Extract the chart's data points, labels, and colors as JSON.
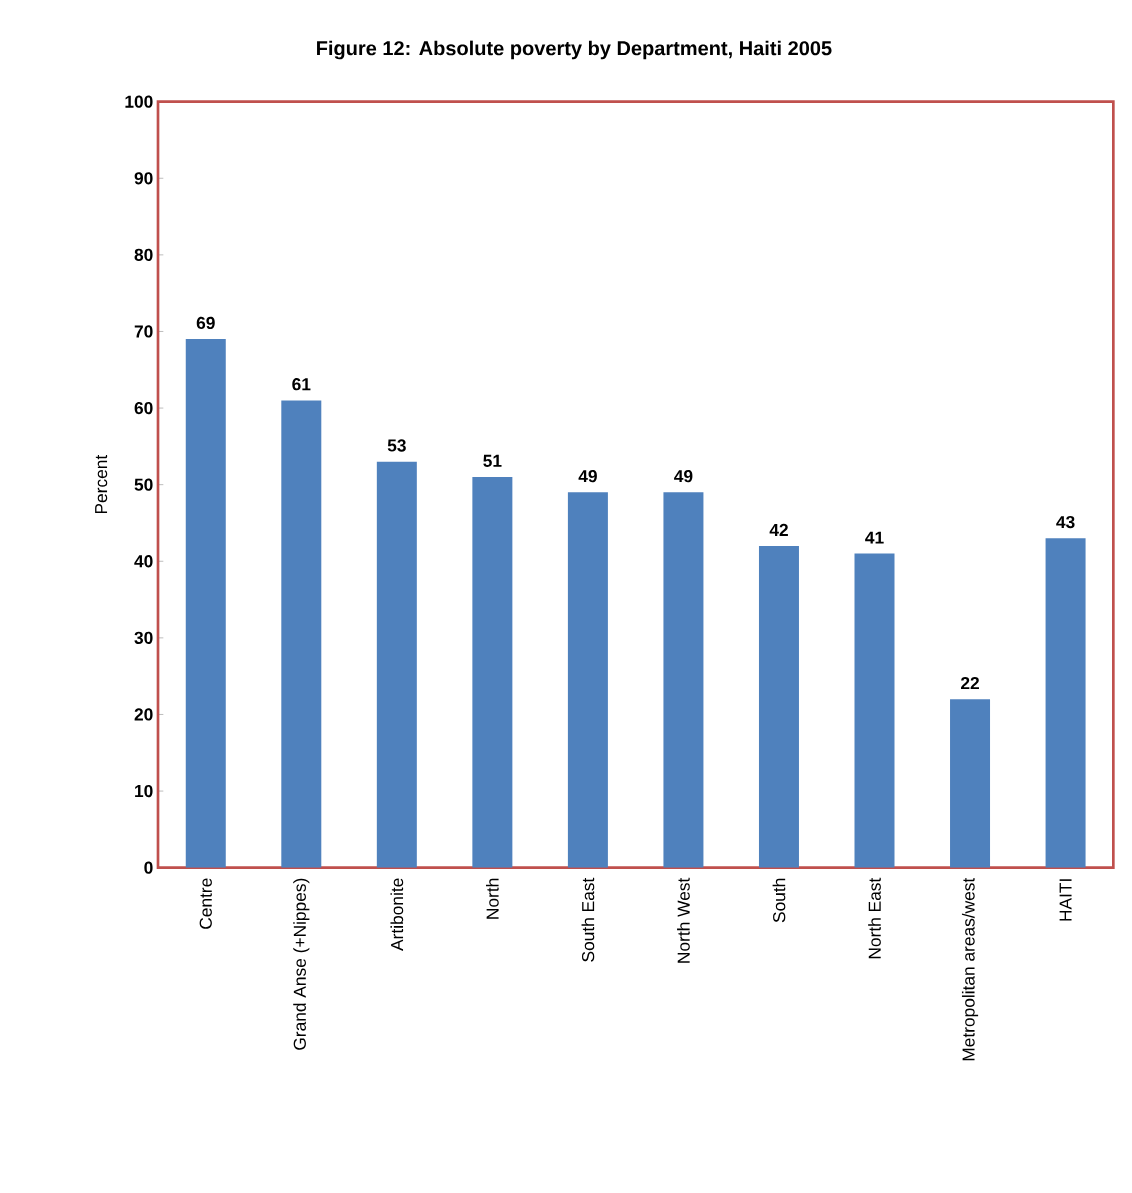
{
  "chart_data": {
    "type": "bar",
    "title": "Figure 12: Absolute poverty by Department, Haiti 2005",
    "ylabel": "Percent",
    "categories": [
      "Centre",
      "Grand Anse (+Nippes)",
      "Artibonite",
      "North",
      "South East",
      "North West",
      "South",
      "North East",
      "Metropolitan areas/west",
      "HAITI"
    ],
    "values": [
      69,
      61,
      53,
      51,
      49,
      49,
      42,
      41,
      22,
      43
    ],
    "color": "#4f81bd",
    "ylim": [
      0,
      100
    ],
    "yticks": [
      0,
      10,
      20,
      30,
      40,
      50,
      60,
      70,
      80,
      90,
      100
    ],
    "data_labels": true
  }
}
